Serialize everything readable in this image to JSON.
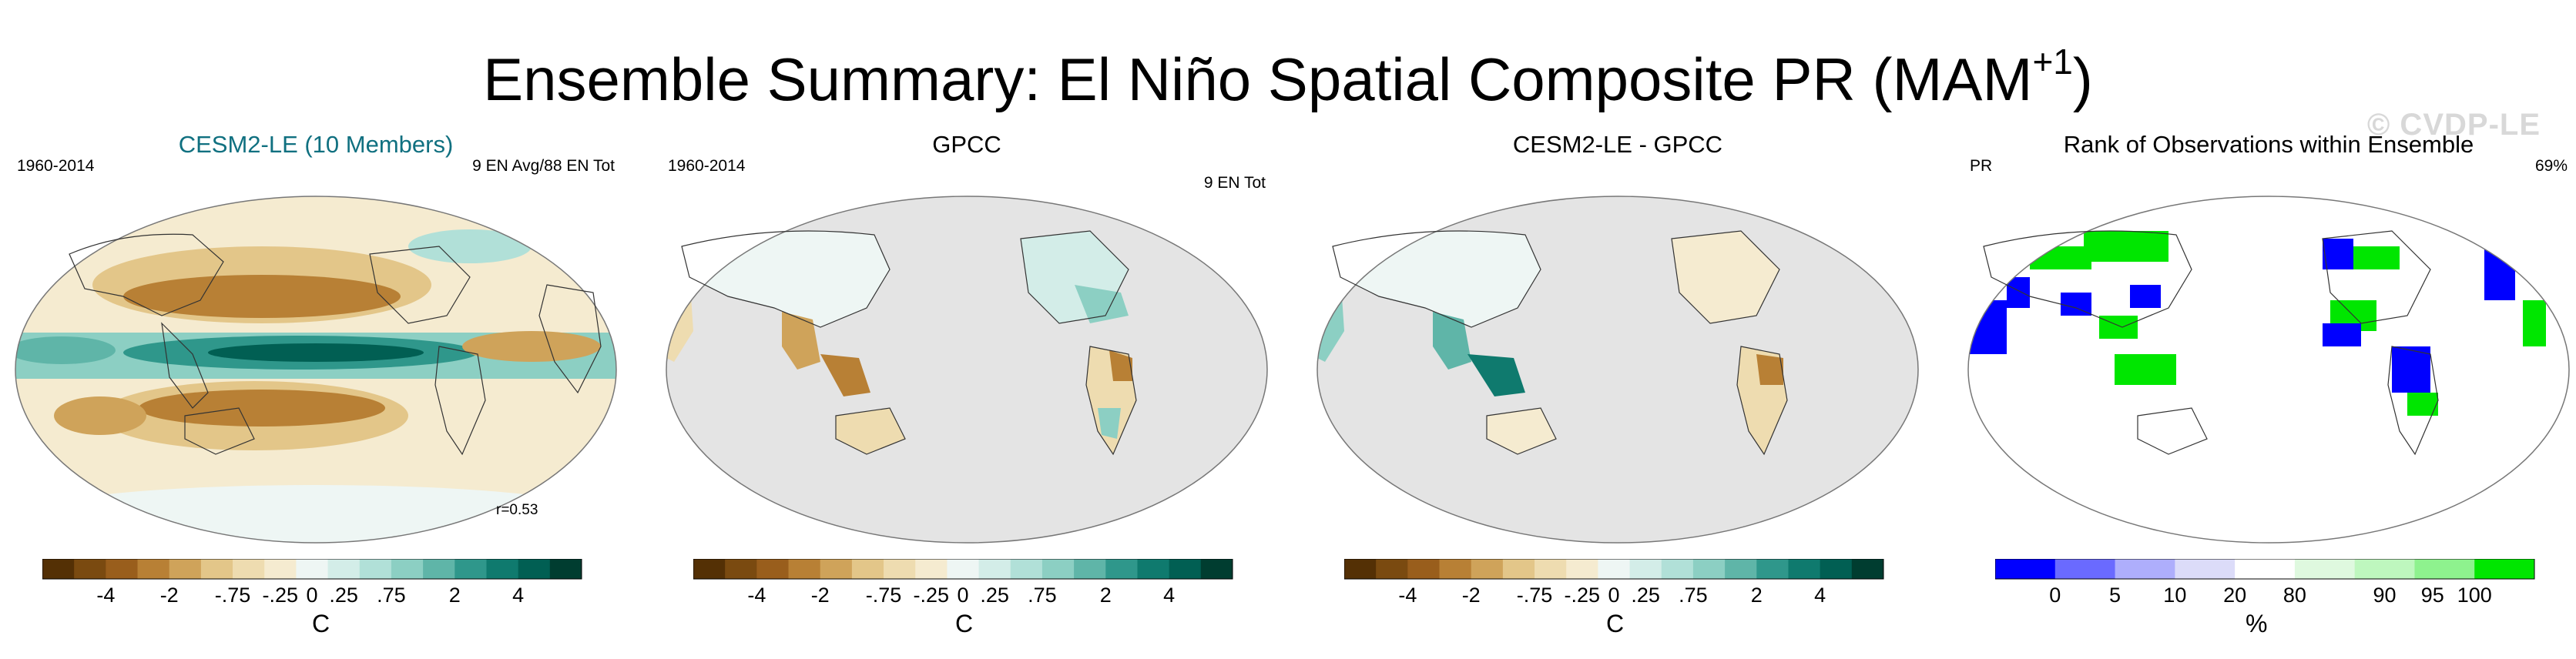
{
  "figure": {
    "title_main": "Ensemble Summary: El Niño Spatial Composite PR (MAM",
    "title_sup": "+1",
    "title_close": ")",
    "watermark": "© CVDP-LE"
  },
  "colors": {
    "diverging": [
      "#543005",
      "#7a4a10",
      "#995e1c",
      "#b88035",
      "#cfa35a",
      "#e3c689",
      "#eedcb0",
      "#f5ebd0",
      "#eef6f4",
      "#d3ede8",
      "#b1e0d8",
      "#8ccfc3",
      "#5fb5a8",
      "#2f978b",
      "#0f7a6e",
      "#015f53",
      "#003d30"
    ],
    "rank": [
      "#0000ff",
      "#6a6aff",
      "#aeaefc",
      "#dcdcf9",
      "#ffffff",
      "#dff9df",
      "#bef7be",
      "#8ef28e",
      "#00e600"
    ],
    "ocean_mask": "#e4e4e4",
    "title_accent": "#107080"
  },
  "panels": [
    {
      "title": "CESM2-LE (10 Members)",
      "left_label": "1960-2014",
      "right_label": "9 EN Avg/88 EN Tot",
      "stat": "r=0.53",
      "colorbar_label": "C",
      "colorbar_ticks": [
        "-4",
        "-2",
        "-.75",
        "-.25",
        "0",
        ".25",
        ".75",
        "2",
        "4"
      ]
    },
    {
      "title": "GPCC",
      "left_label": "1960-2014",
      "right_label": "9 EN Tot",
      "colorbar_label": "C",
      "colorbar_ticks": [
        "-4",
        "-2",
        "-.75",
        "-.25",
        "0",
        ".25",
        ".75",
        "2",
        "4"
      ]
    },
    {
      "title": "CESM2-LE - GPCC",
      "colorbar_label": "C",
      "colorbar_ticks": [
        "-4",
        "-2",
        "-.75",
        "-.25",
        "0",
        ".25",
        ".75",
        "2",
        "4"
      ]
    },
    {
      "title": "Rank of Observations within Ensemble",
      "left_label": "PR",
      "right_label": "69%",
      "colorbar_label": "%",
      "colorbar_ticks": [
        "0",
        "5",
        "10",
        "20",
        "80",
        "90",
        "95",
        "100"
      ]
    }
  ],
  "chart_data": [
    {
      "type": "heatmap",
      "title": "CESM2-LE (10 Members)",
      "variable": "PR composite anomaly",
      "period": "1960-2014",
      "annotation": "9 EN Avg/88 EN Tot",
      "pattern_correlation": 0.53,
      "levels": [
        -4,
        -2,
        -0.75,
        -0.25,
        0,
        0.25,
        0.75,
        2,
        4
      ],
      "colorbar_label": "C",
      "features": [
        {
          "region": "Equatorial central/east Pacific",
          "sign": "positive",
          "magnitude": 4
        },
        {
          "region": "North subtropical Pacific",
          "sign": "negative",
          "magnitude": -2
        },
        {
          "region": "South subtropical Pacific",
          "sign": "negative",
          "magnitude": -2
        },
        {
          "region": "Equatorial Indian Ocean",
          "sign": "positive",
          "magnitude": 1
        },
        {
          "region": "Maritime continent / Indonesia",
          "sign": "positive",
          "magnitude": 1
        },
        {
          "region": "Equatorial Atlantic",
          "sign": "negative",
          "magnitude": -1
        }
      ]
    },
    {
      "type": "heatmap",
      "title": "GPCC",
      "variable": "PR composite anomaly (land only)",
      "period": "1960-2014",
      "annotation": "9 EN Tot",
      "levels": [
        -4,
        -2,
        -0.75,
        -0.25,
        0,
        0.25,
        0.75,
        2,
        4
      ],
      "colorbar_label": "C",
      "features": [
        {
          "region": "Maritime continent / Indonesia",
          "sign": "negative",
          "magnitude": -1
        },
        {
          "region": "Northern South America",
          "sign": "negative",
          "magnitude": -1
        },
        {
          "region": "Southeastern South America",
          "sign": "positive",
          "magnitude": 0.75
        },
        {
          "region": "Southern United States",
          "sign": "positive",
          "magnitude": 0.75
        }
      ]
    },
    {
      "type": "heatmap",
      "title": "CESM2-LE - GPCC",
      "variable": "PR composite difference (land only)",
      "levels": [
        -4,
        -2,
        -0.75,
        -0.25,
        0,
        0.25,
        0.75,
        2,
        4
      ],
      "colorbar_label": "C",
      "features": [
        {
          "region": "Maritime continent / Indonesia",
          "sign": "positive",
          "magnitude": 2
        },
        {
          "region": "Northern South America",
          "sign": "negative",
          "magnitude": -1
        },
        {
          "region": "West Africa",
          "sign": "positive",
          "magnitude": 0.75
        }
      ]
    },
    {
      "type": "heatmap",
      "title": "Rank of Observations within Ensemble",
      "variable": "PR",
      "percent_within_range": 69,
      "levels": [
        0,
        5,
        10,
        20,
        80,
        90,
        95,
        100
      ],
      "colorbar_label": "%",
      "features": [
        {
          "region": "Northern Africa / Sahara",
          "category": "0-5"
        },
        {
          "region": "Canada / Alaska",
          "category": "0-5"
        },
        {
          "region": "Southern South America",
          "category": "0-5"
        },
        {
          "region": "Northern Eurasia",
          "category": "95-100"
        },
        {
          "region": "Indonesia",
          "category": "95-100"
        },
        {
          "region": "Eastern United States",
          "category": "95-100"
        }
      ]
    }
  ]
}
